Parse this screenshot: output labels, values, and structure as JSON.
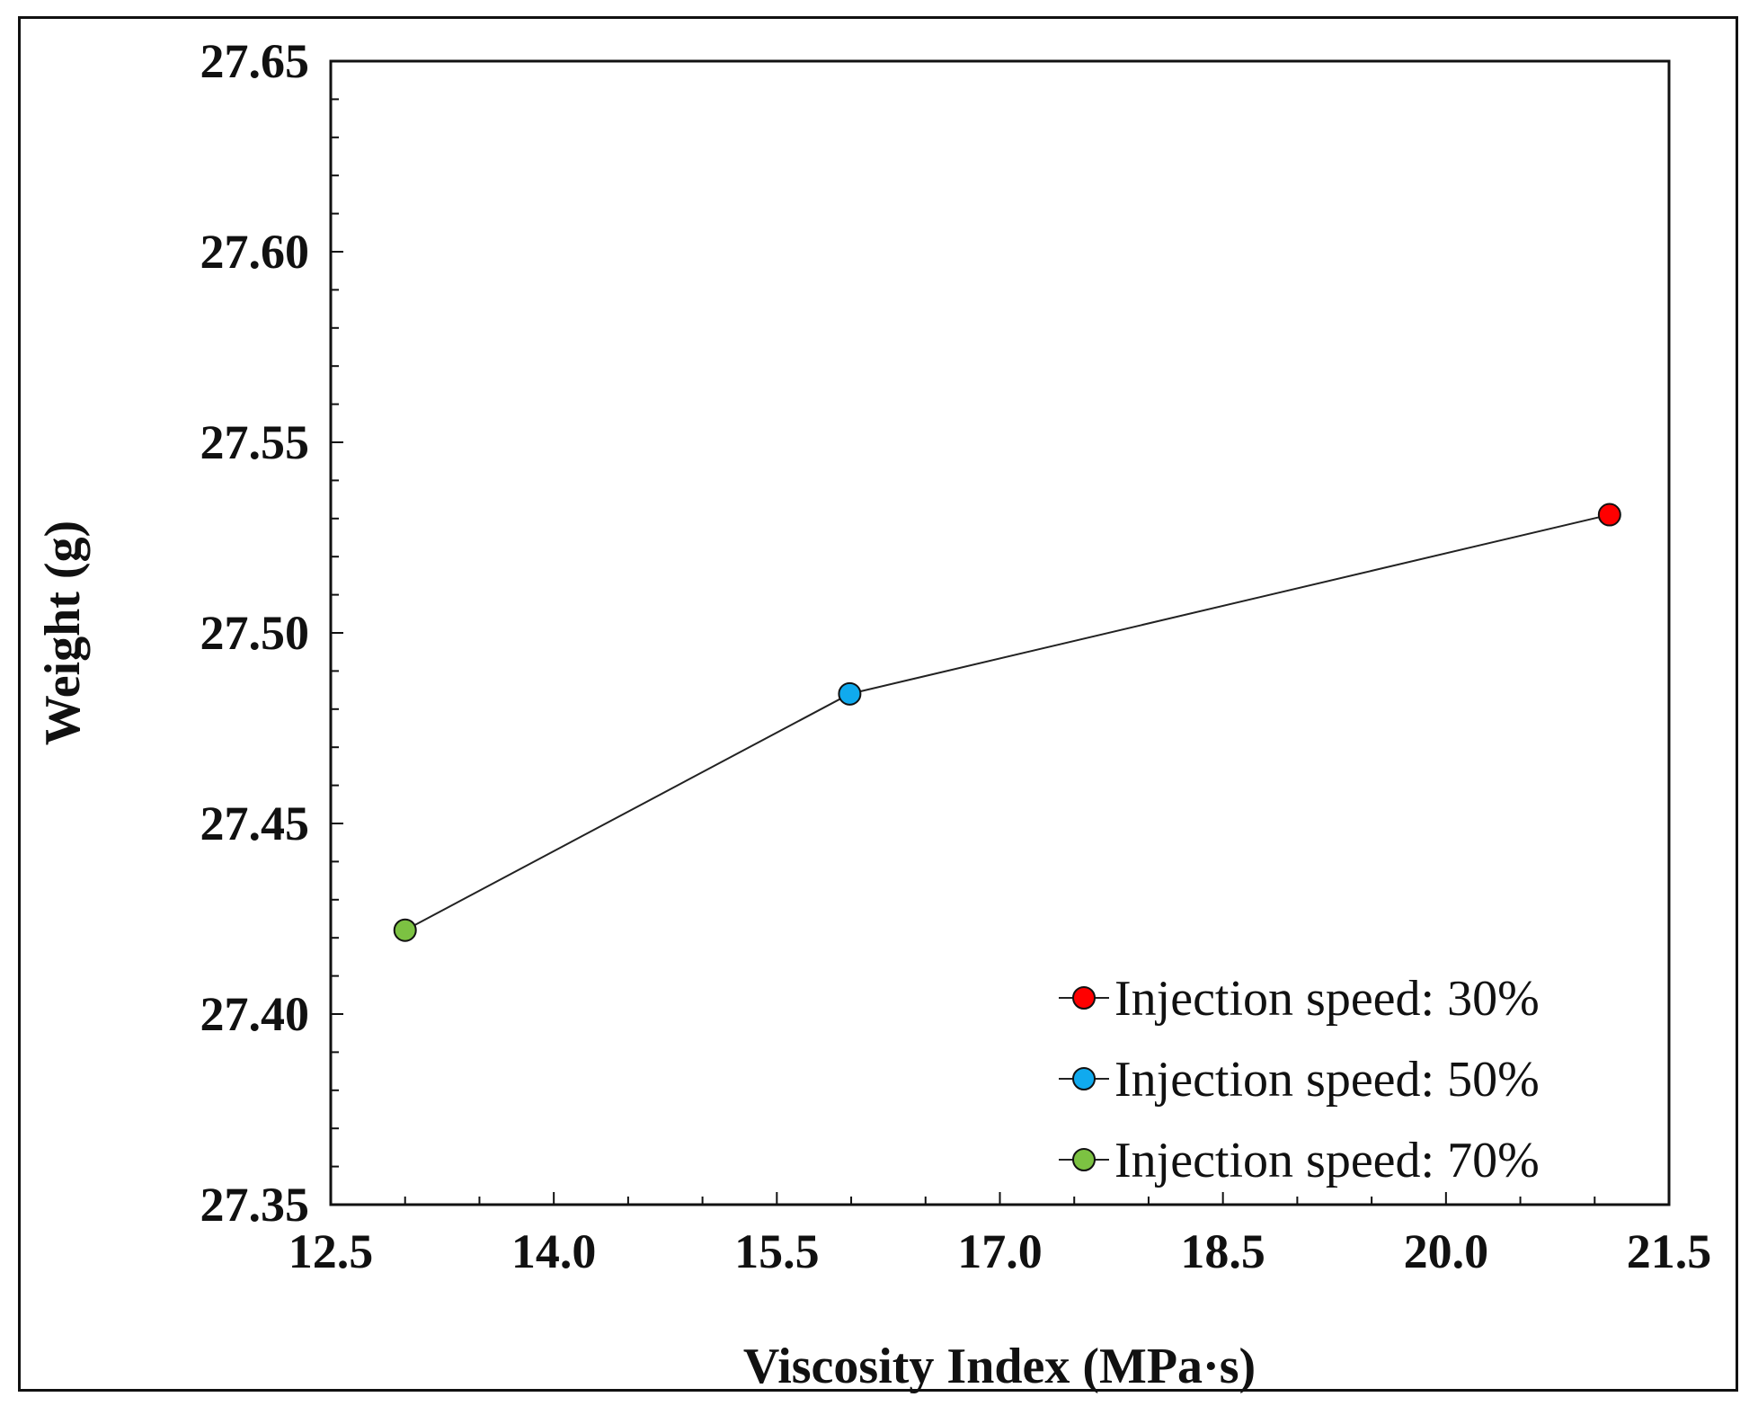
{
  "chart_data": {
    "type": "line",
    "title": "",
    "xlabel": "Viscosity Index (MPa·s)",
    "ylabel": "Weight (g)",
    "xlim": [
      12.5,
      21.5
    ],
    "ylim": [
      27.35,
      27.65
    ],
    "xticks": [
      "12.5",
      "14.0",
      "15.5",
      "17.0",
      "18.5",
      "20.0",
      "21.5"
    ],
    "yticks": [
      "27.35",
      "27.40",
      "27.45",
      "27.50",
      "27.55",
      "27.60",
      "27.65"
    ],
    "grid": false,
    "legend_position": "bottom-right",
    "line_color": "#222222",
    "series": [
      {
        "name": "Injection speed: 30%",
        "color": "#ff0000",
        "x": 21.1,
        "y": 27.531
      },
      {
        "name": "Injection speed: 50%",
        "color": "#10aaee",
        "x": 15.99,
        "y": 27.484
      },
      {
        "name": "Injection speed: 70%",
        "color": "#7cc242",
        "x": 13.0,
        "y": 27.422
      }
    ]
  }
}
